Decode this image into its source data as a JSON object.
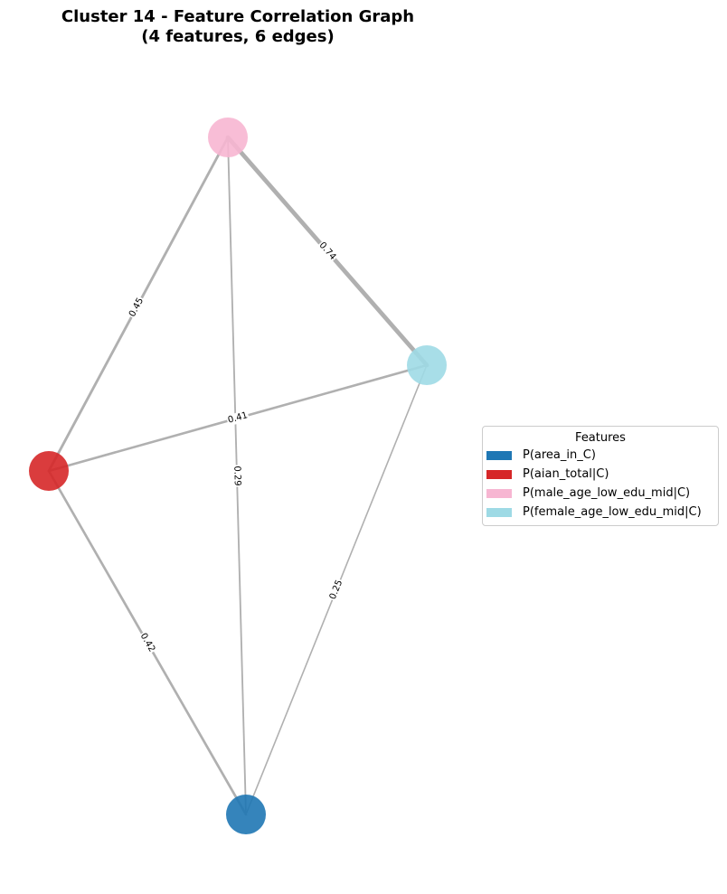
{
  "title": {
    "line1": "Cluster 14 - Feature Correlation Graph",
    "line2": "(4 features, 6 edges)"
  },
  "legend": {
    "title": "Features",
    "items": [
      {
        "label": "P(area_in_C)",
        "color": "#1f77b4"
      },
      {
        "label": "P(aian_total|C)",
        "color": "#d62728"
      },
      {
        "label": "P(male_age_low_edu_mid|C)",
        "color": "#f7b6d2"
      },
      {
        "label": "P(female_age_low_edu_mid|C)",
        "color": "#9edae5"
      }
    ]
  },
  "nodes": [
    {
      "id": "male_age_low_edu_mid",
      "color": "#f7b6d2"
    },
    {
      "id": "female_age_low_edu_mid",
      "color": "#9edae5"
    },
    {
      "id": "aian_total",
      "color": "#d62728"
    },
    {
      "id": "area_in_C",
      "color": "#1f77b4"
    }
  ],
  "edges": [
    {
      "source": "male_age_low_edu_mid",
      "target": "female_age_low_edu_mid",
      "weight": 0.74,
      "label": "0.74"
    },
    {
      "source": "male_age_low_edu_mid",
      "target": "aian_total",
      "weight": 0.45,
      "label": "0.45"
    },
    {
      "source": "male_age_low_edu_mid",
      "target": "area_in_C",
      "weight": 0.29,
      "label": "0.29"
    },
    {
      "source": "aian_total",
      "target": "female_age_low_edu_mid",
      "weight": 0.41,
      "label": "0.41"
    },
    {
      "source": "aian_total",
      "target": "area_in_C",
      "weight": 0.42,
      "label": "0.42"
    },
    {
      "source": "female_age_low_edu_mid",
      "target": "area_in_C",
      "weight": 0.25,
      "label": "0.25"
    }
  ]
}
